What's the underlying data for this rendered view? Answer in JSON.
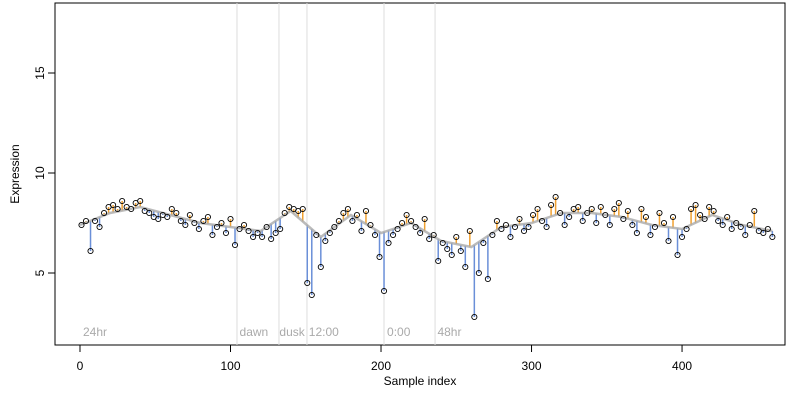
{
  "chart_data": {
    "type": "scatter",
    "xlabel": "Sample index",
    "ylabel": "Expression",
    "xlim": [
      -16.6,
      468.4
    ],
    "ylim": [
      1.4,
      18.5
    ],
    "xticks": [
      0,
      100,
      200,
      300,
      400
    ],
    "yticks": [
      5,
      10,
      15
    ],
    "segment_colors": {
      "above": "#f0a030",
      "below": "#6a8fd8"
    },
    "series": [
      {
        "color": "#000000",
        "x": [
          1,
          4,
          7,
          10,
          13,
          16,
          19,
          22,
          25,
          28,
          31,
          34,
          37,
          40,
          43,
          46,
          49,
          52,
          55,
          58,
          61,
          64,
          67,
          70,
          73,
          76,
          79,
          82,
          85,
          88,
          91,
          94,
          97,
          100,
          103,
          106,
          109,
          112,
          115,
          118,
          121,
          124,
          127,
          130,
          133,
          136,
          139,
          142,
          145,
          148,
          151,
          154,
          157,
          160,
          163,
          166,
          169,
          172,
          175,
          178,
          181,
          184,
          187,
          190,
          193,
          196,
          199,
          202,
          205,
          208,
          211,
          214,
          217,
          220,
          223,
          226,
          229,
          232,
          235,
          238,
          241,
          244,
          247,
          250,
          253,
          256,
          259,
          262,
          265,
          268,
          271,
          274,
          277,
          280,
          283,
          286,
          289,
          292,
          295,
          298,
          301,
          304,
          307,
          310,
          313,
          316,
          319,
          322,
          325,
          328,
          331,
          334,
          337,
          340,
          343,
          346,
          349,
          352,
          355,
          358,
          361,
          364,
          367,
          370,
          373,
          376,
          379,
          382,
          385,
          388,
          391,
          394,
          397,
          400,
          403,
          406,
          409,
          412,
          415,
          418,
          421,
          424,
          427,
          430,
          433,
          436,
          439,
          442,
          445,
          448,
          451,
          454,
          457,
          460
        ],
        "values": [
          7.4,
          7.6,
          6.1,
          7.6,
          7.3,
          8.0,
          8.3,
          8.4,
          8.2,
          8.6,
          8.3,
          8.2,
          8.5,
          8.6,
          8.1,
          8.0,
          7.8,
          7.7,
          7.9,
          7.8,
          8.2,
          8.0,
          7.6,
          7.4,
          7.9,
          7.5,
          7.2,
          7.6,
          7.8,
          6.9,
          7.3,
          7.5,
          7.0,
          7.7,
          6.4,
          7.2,
          7.4,
          7.1,
          6.8,
          7.0,
          6.8,
          7.3,
          6.7,
          7.0,
          7.2,
          8.0,
          8.3,
          8.2,
          8.1,
          8.2,
          4.5,
          3.9,
          6.9,
          5.3,
          6.6,
          7.0,
          7.3,
          7.6,
          8.0,
          8.2,
          7.6,
          7.9,
          7.1,
          8.1,
          7.4,
          6.9,
          5.8,
          4.1,
          6.5,
          6.9,
          7.2,
          7.5,
          7.9,
          7.6,
          7.3,
          7.0,
          7.7,
          6.7,
          6.9,
          5.6,
          6.5,
          6.2,
          5.9,
          6.8,
          6.1,
          5.3,
          7.1,
          2.8,
          5.0,
          6.5,
          4.7,
          6.9,
          7.6,
          7.2,
          7.4,
          6.8,
          7.3,
          7.7,
          7.1,
          7.3,
          7.9,
          8.2,
          7.6,
          7.3,
          8.4,
          8.8,
          8.0,
          7.4,
          7.8,
          8.2,
          8.3,
          7.6,
          8.0,
          8.2,
          7.5,
          8.3,
          7.9,
          7.4,
          8.2,
          8.5,
          7.7,
          8.1,
          7.4,
          7.0,
          8.2,
          7.8,
          6.9,
          7.3,
          8.0,
          7.5,
          6.6,
          7.8,
          5.9,
          6.8,
          7.2,
          8.2,
          8.4,
          7.9,
          7.7,
          8.3,
          8.1,
          7.6,
          7.4,
          7.8,
          7.2,
          7.5,
          7.3,
          6.9,
          7.4,
          8.1,
          7.1,
          7.0,
          7.2,
          6.8
        ]
      },
      {
        "color": "#aaaaaa",
        "x": [
          0,
          20,
          40,
          60,
          80,
          100,
          120,
          140,
          160,
          180,
          200,
          220,
          240,
          260,
          280,
          300,
          320,
          340,
          360,
          380,
          400,
          420,
          440,
          460
        ],
        "values": [
          7.4,
          8.0,
          8.3,
          7.9,
          7.5,
          7.3,
          7.1,
          8.1,
          6.8,
          7.9,
          7.0,
          7.5,
          6.6,
          6.3,
          7.3,
          7.5,
          8.0,
          8.0,
          7.8,
          7.4,
          7.2,
          7.9,
          7.4,
          7.1
        ]
      }
    ],
    "vlines": [
      104.3,
      132.2,
      150.8,
      202,
      235.9
    ],
    "annotations": [
      {
        "x": 2,
        "text": "24hr"
      },
      {
        "x": 106,
        "text": "dawn"
      },
      {
        "x": 132.5,
        "text": "dusk"
      },
      {
        "x": 152,
        "text": "12:00"
      },
      {
        "x": 204,
        "text": "0:00"
      },
      {
        "x": 237.5,
        "text": "48hr"
      }
    ]
  }
}
